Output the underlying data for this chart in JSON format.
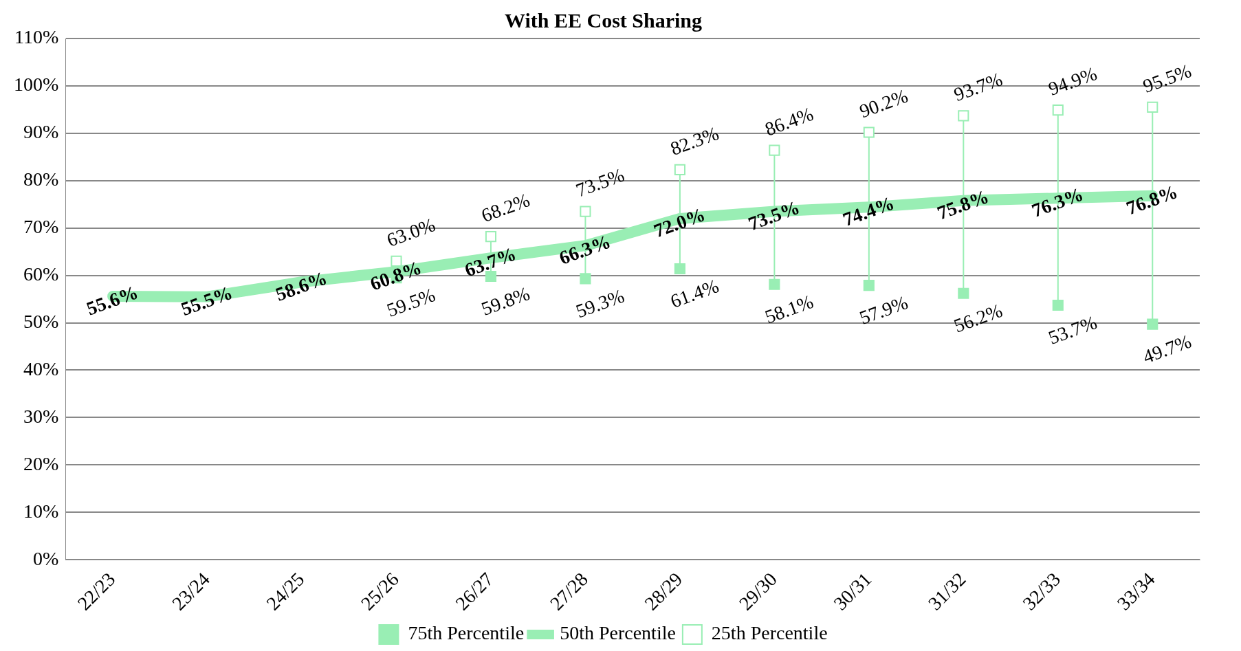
{
  "chart_data": {
    "type": "line",
    "title": "With EE Cost Sharing",
    "categories": [
      "22/23",
      "23/24",
      "24/25",
      "25/26",
      "26/27",
      "27/28",
      "28/29",
      "29/30",
      "30/31",
      "31/32",
      "32/33",
      "33/34"
    ],
    "series": [
      {
        "name": "75th Percentile",
        "type": "scatter",
        "marker": "square",
        "color": "#99eeb4",
        "values": [
          null,
          null,
          null,
          59.5,
          59.8,
          59.3,
          61.4,
          58.1,
          57.9,
          56.2,
          53.7,
          49.7
        ],
        "value_labels": [
          null,
          null,
          null,
          "59.5%",
          "59.8%",
          "59.3%",
          "61.4%",
          "58.1%",
          "57.9%",
          "56.2%",
          "53.7%",
          "49.7%"
        ]
      },
      {
        "name": "50th Percentile",
        "marker": "none",
        "color": "#99eeb4",
        "values": [
          55.6,
          55.5,
          58.6,
          60.8,
          63.7,
          66.3,
          72.0,
          73.5,
          74.4,
          75.8,
          76.3,
          76.8
        ],
        "value_labels": [
          "55.6%",
          "55.5%",
          "58.6%",
          "60.8%",
          "63.7%",
          "66.3%",
          "72.0%",
          "73.5%",
          "74.4%",
          "75.8%",
          "76.3%",
          "76.8%"
        ]
      },
      {
        "name": "25th Percentile",
        "type": "scatter",
        "marker": "square-open",
        "color": "#99eeb4",
        "values": [
          null,
          null,
          null,
          63.0,
          68.2,
          73.5,
          82.3,
          86.4,
          90.2,
          93.7,
          94.9,
          95.5
        ],
        "value_labels": [
          null,
          null,
          null,
          "63.0%",
          "68.2%",
          "73.5%",
          "82.3%",
          "86.4%",
          "90.2%",
          "93.7%",
          "94.9%",
          "95.5%"
        ]
      }
    ],
    "ylim": [
      0,
      110
    ],
    "yticks": [
      {
        "value": 0,
        "label": "0%"
      },
      {
        "value": 10,
        "label": "10%"
      },
      {
        "value": 20,
        "label": "20%"
      },
      {
        "value": 30,
        "label": "30%"
      },
      {
        "value": 40,
        "label": "40%"
      },
      {
        "value": 50,
        "label": "50%"
      },
      {
        "value": 60,
        "label": "60%"
      },
      {
        "value": 70,
        "label": "70%"
      },
      {
        "value": 80,
        "label": "80%"
      },
      {
        "value": 90,
        "label": "90%"
      },
      {
        "value": 100,
        "label": "100%"
      },
      {
        "value": 110,
        "label": "110%"
      }
    ],
    "grid": "y",
    "legend": "bottom"
  }
}
